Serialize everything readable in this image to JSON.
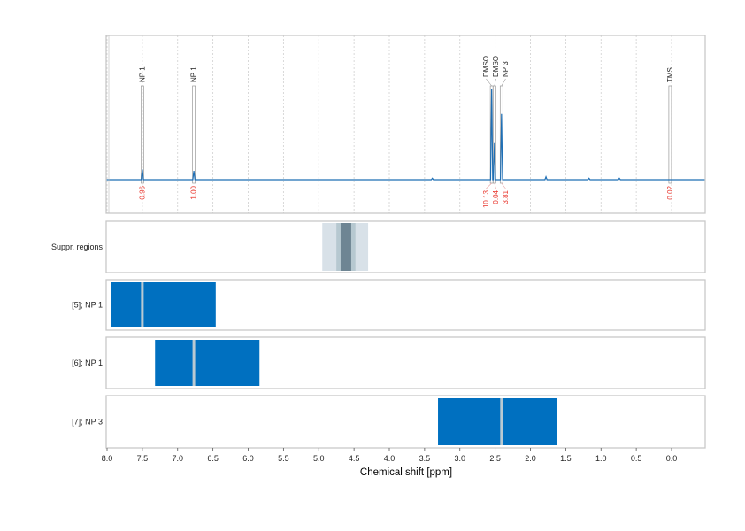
{
  "chart_data": {
    "type": "line",
    "xlabel": "Chemical shift [ppm]",
    "xlim": [
      8.0,
      -0.47
    ],
    "x_ticks": [
      "8.0",
      "7.5",
      "7.0",
      "6.5",
      "6.0",
      "5.5",
      "5.0",
      "4.5",
      "4.0",
      "3.5",
      "3.0",
      "2.5",
      "2.0",
      "1.5",
      "1.0",
      "0.5",
      "0.0"
    ],
    "grid": "vertical dashed at 0.5 ppm (spectrum panel)",
    "colors": {
      "spectrum": "#1f6fb5",
      "integral": "#e8332a",
      "bar": "#0070c0",
      "frame": "#c8c8c8"
    },
    "spectrum": {
      "baseline": 0,
      "peaks": [
        {
          "ppm": 7.5,
          "height": 0.07
        },
        {
          "ppm": 6.77,
          "height": 0.06
        },
        {
          "ppm": 3.39,
          "height": 0.01
        },
        {
          "ppm": 2.55,
          "height": 0.62
        },
        {
          "ppm": 2.51,
          "height": 0.25
        },
        {
          "ppm": 2.41,
          "height": 0.45
        },
        {
          "ppm": 1.78,
          "height": 0.02
        },
        {
          "ppm": 1.17,
          "height": 0.01
        },
        {
          "ppm": 0.74,
          "height": 0.01
        }
      ]
    },
    "annotations": [
      {
        "label": "NP 1",
        "ppm": 7.5,
        "integral": "0.96"
      },
      {
        "label": "NP 1",
        "ppm": 6.77,
        "integral": "1.00"
      },
      {
        "label": "DMSO",
        "ppm": 2.55,
        "integral": "10.13"
      },
      {
        "label": "DMSO",
        "ppm": 2.51,
        "integral": "0.04"
      },
      {
        "label": "NP 3",
        "ppm": 2.41,
        "integral": "3.81"
      },
      {
        "label": "TMS",
        "ppm": 0.02,
        "integral": "0.02"
      }
    ],
    "suppression": {
      "label": "Suppr. regions",
      "bands": [
        {
          "from": 4.95,
          "to": 4.3,
          "color": "#d8e1e8"
        },
        {
          "from": 4.75,
          "to": 4.48,
          "color": "#b6c8d0"
        },
        {
          "from": 4.69,
          "to": 4.54,
          "color": "#6e8593"
        }
      ]
    },
    "tracks": [
      {
        "label": "[5]; NP 1",
        "from": 7.94,
        "to": 6.46,
        "center": 7.5
      },
      {
        "label": "[6]; NP 1",
        "from": 7.32,
        "to": 5.84,
        "center": 6.77
      },
      {
        "label": "[7]; NP 3",
        "from": 3.31,
        "to": 1.62,
        "center": 2.41
      }
    ]
  }
}
